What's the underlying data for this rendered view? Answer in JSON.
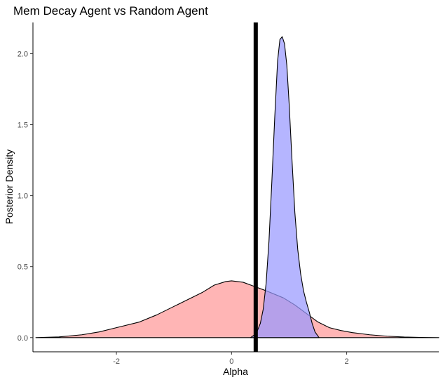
{
  "chart_data": {
    "type": "area",
    "title": "Mem Decay Agent vs Random Agent",
    "xlabel": "Alpha",
    "ylabel": "Posterior Density",
    "xlim": [
      -3.45,
      3.6
    ],
    "ylim": [
      -0.1,
      2.22
    ],
    "x_ticks": [
      -2,
      0,
      2
    ],
    "x_tick_labels": [
      "-2",
      "0",
      "2"
    ],
    "y_ticks": [
      0.0,
      0.5,
      1.0,
      1.5,
      2.0
    ],
    "y_tick_labels": [
      "0.0",
      "0.5",
      "1.0",
      "1.5",
      "2.0"
    ],
    "grid": false,
    "legend": "none",
    "reference_line": {
      "x": 0.42,
      "color": "#000000"
    },
    "series": [
      {
        "fill": "#ff9999",
        "fill_opacity": 0.72,
        "stroke": "#000000",
        "x": [
          -3.4,
          -3.0,
          -2.6,
          -2.3,
          -2.0,
          -1.6,
          -1.3,
          -1.0,
          -0.8,
          -0.5,
          -0.3,
          -0.1,
          0.0,
          0.2,
          0.4,
          0.6,
          0.9,
          1.1,
          1.3,
          1.5,
          1.7,
          1.9,
          2.1,
          2.4,
          2.7,
          3.0,
          3.3,
          3.6
        ],
        "y": [
          0.0,
          0.005,
          0.02,
          0.04,
          0.07,
          0.11,
          0.16,
          0.22,
          0.26,
          0.32,
          0.37,
          0.395,
          0.4,
          0.39,
          0.36,
          0.33,
          0.28,
          0.23,
          0.17,
          0.11,
          0.07,
          0.05,
          0.035,
          0.02,
          0.01,
          0.004,
          0.001,
          0.0
        ]
      },
      {
        "fill": "#9999ff",
        "fill_opacity": 0.72,
        "stroke": "#000000",
        "x": [
          0.33,
          0.4,
          0.45,
          0.5,
          0.55,
          0.6,
          0.65,
          0.7,
          0.75,
          0.8,
          0.84,
          0.88,
          0.92,
          0.96,
          1.0,
          1.05,
          1.1,
          1.15,
          1.2,
          1.25,
          1.3,
          1.35,
          1.4,
          1.45,
          1.52
        ],
        "y": [
          0.0,
          0.02,
          0.05,
          0.1,
          0.2,
          0.38,
          0.68,
          1.1,
          1.55,
          1.95,
          2.1,
          2.12,
          2.07,
          1.92,
          1.65,
          1.25,
          0.88,
          0.62,
          0.45,
          0.33,
          0.25,
          0.18,
          0.1,
          0.04,
          0.0
        ]
      }
    ]
  }
}
